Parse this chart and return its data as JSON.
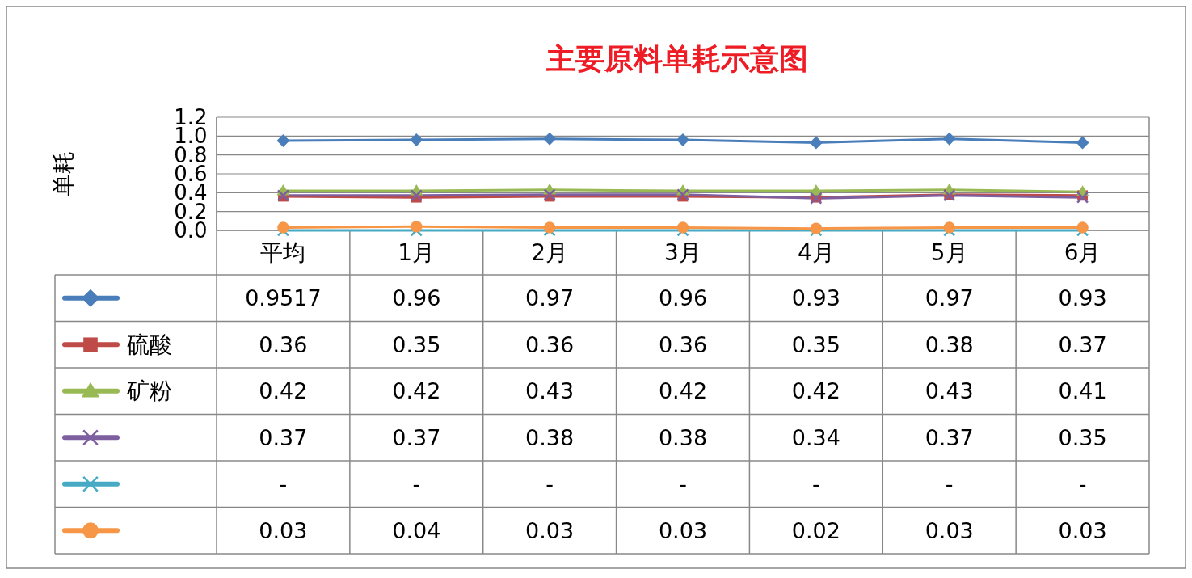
{
  "chart_data": {
    "type": "line",
    "title": "主要原料单耗示意图",
    "ylabel": "单耗",
    "categories": [
      "平均",
      "1月",
      "2月",
      "3月",
      "4月",
      "5月",
      "6月"
    ],
    "ylim": [
      0,
      1.2
    ],
    "yticks": [
      "0.0",
      0.2,
      0.4,
      0.6,
      0.8,
      "1.0",
      1.2
    ],
    "grid": "y",
    "legend": "bottom",
    "line_style": "solid",
    "series": [
      {
        "color": "#4a7ebb",
        "marker": "diamond",
        "values": [
          0.9517,
          0.96,
          0.97,
          0.96,
          0.93,
          0.97,
          0.93
        ],
        "value_labels": [
          "0.9517",
          "0.96",
          "0.97",
          "0.96",
          "0.93",
          "0.97",
          "0.93"
        ]
      },
      {
        "name": "硫酸",
        "color": "#be4b48",
        "marker": "square",
        "values": [
          0.36,
          0.35,
          0.36,
          0.36,
          0.35,
          0.38,
          0.37
        ],
        "value_labels": [
          "0.36",
          "0.35",
          "0.36",
          "0.36",
          "0.35",
          "0.38",
          "0.37"
        ]
      },
      {
        "name": "矿粉",
        "color": "#98b954",
        "marker": "triangle",
        "values": [
          0.42,
          0.42,
          0.43,
          0.42,
          0.42,
          0.43,
          0.41
        ],
        "value_labels": [
          "0.42",
          "0.42",
          "0.43",
          "0.42",
          "0.42",
          "0.43",
          "0.41"
        ]
      },
      {
        "color": "#7d5fa0",
        "marker": "cross",
        "values": [
          0.37,
          0.37,
          0.38,
          0.38,
          0.34,
          0.37,
          0.35
        ],
        "value_labels": [
          "0.37",
          "0.37",
          "0.38",
          "0.38",
          "0.34",
          "0.37",
          "0.35"
        ]
      },
      {
        "color": "#46aac5",
        "marker": "cross",
        "values": [
          0,
          0,
          0,
          0,
          0,
          0,
          0
        ],
        "value_labels": [
          "-",
          "-",
          "-",
          "-",
          "-",
          "-",
          "-"
        ]
      },
      {
        "color": "#f79646",
        "marker": "circle",
        "values": [
          0.03,
          0.04,
          0.03,
          0.03,
          0.02,
          0.03,
          0.03
        ],
        "value_labels": [
          "0.03",
          "0.04",
          "0.03",
          "0.03",
          "0.02",
          "0.03",
          "0.03"
        ]
      }
    ]
  }
}
